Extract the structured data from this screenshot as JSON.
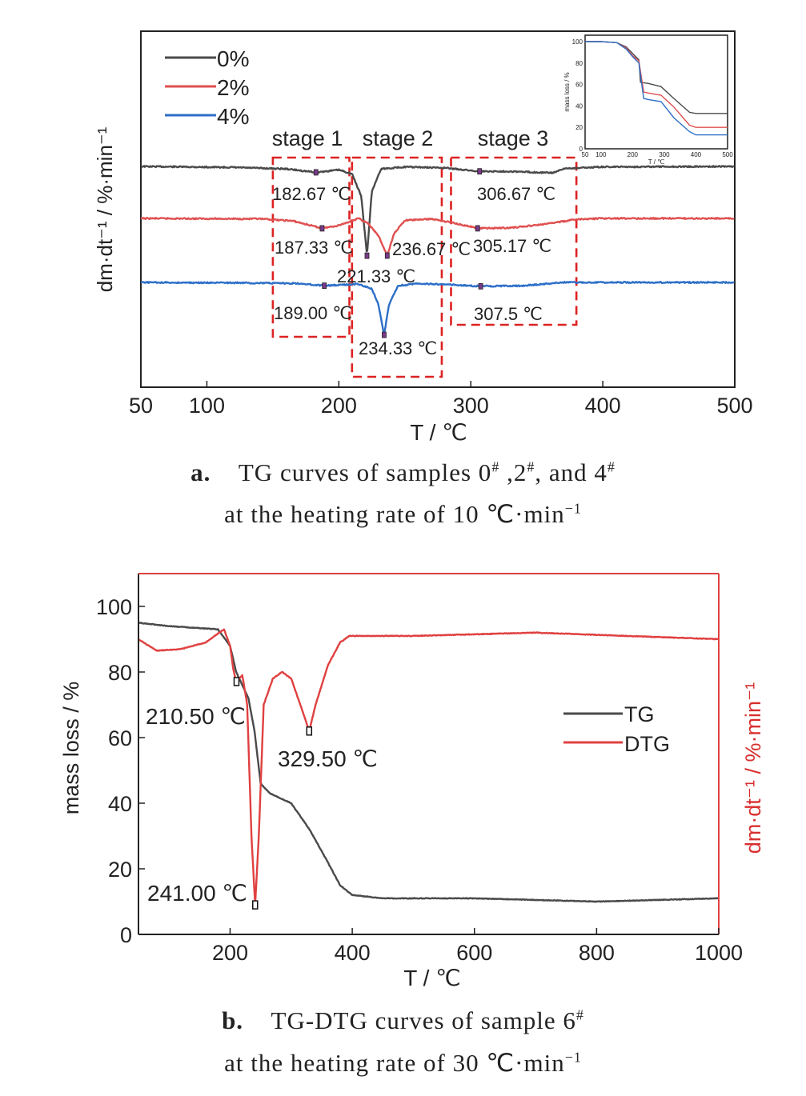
{
  "chart_data": [
    {
      "type": "line",
      "xlabel": "T / ℃",
      "ylabel": "dm·dt⁻¹ / %·min⁻¹",
      "xlim": [
        50,
        500
      ],
      "xticks": [
        "50",
        "100",
        "200",
        "300",
        "400",
        "500"
      ],
      "legend_position": "top-left",
      "series": [
        {
          "name": "0%",
          "color": "#4a4a4a",
          "points": [
            [
              50,
              0.0
            ],
            [
              120,
              0.2
            ],
            [
              160,
              0.5
            ],
            [
              182.67,
              1.2
            ],
            [
              200,
              0.7
            ],
            [
              210,
              1.5
            ],
            [
              217,
              6
            ],
            [
              221.33,
              18.0
            ],
            [
              225,
              5
            ],
            [
              232,
              0.5
            ],
            [
              250,
              0.1
            ],
            [
              280,
              0.3
            ],
            [
              306.67,
              1.0
            ],
            [
              330,
              1.0
            ],
            [
              350,
              1.2
            ],
            [
              362,
              1.3
            ],
            [
              372,
              0.4
            ],
            [
              400,
              0.1
            ],
            [
              500,
              0.0
            ]
          ]
        },
        {
          "name": "2%",
          "color": "#e05050",
          "points": [
            [
              50,
              0.0
            ],
            [
              140,
              0.1
            ],
            [
              165,
              0.5
            ],
            [
              187.33,
              2.0
            ],
            [
              200,
              1.4
            ],
            [
              215,
              0.0
            ],
            [
              222,
              1.0
            ],
            [
              230,
              3.5
            ],
            [
              236.67,
              7.5
            ],
            [
              242,
              3
            ],
            [
              250,
              0.4
            ],
            [
              270,
              0.1
            ],
            [
              285,
              0.8
            ],
            [
              305.17,
              2.0
            ],
            [
              330,
              1.9
            ],
            [
              355,
              1.2
            ],
            [
              380,
              0.2
            ],
            [
              400,
              0.0
            ],
            [
              500,
              0.0
            ]
          ]
        },
        {
          "name": "4%",
          "color": "#2d6fc8",
          "points": [
            [
              50,
              0.0
            ],
            [
              140,
              0.1
            ],
            [
              170,
              0.2
            ],
            [
              189.0,
              0.6
            ],
            [
              205,
              0.4
            ],
            [
              215,
              0.3
            ],
            [
              225,
              1.2
            ],
            [
              230,
              4
            ],
            [
              234.33,
              9.5
            ],
            [
              238,
              4
            ],
            [
              245,
              0.6
            ],
            [
              260,
              0.2
            ],
            [
              285,
              0.4
            ],
            [
              307.5,
              0.7
            ],
            [
              340,
              0.6
            ],
            [
              370,
              0.0
            ],
            [
              400,
              0.0
            ],
            [
              500,
              0.0
            ]
          ]
        }
      ],
      "annotations": {
        "stages": [
          "stage 1",
          "stage 2",
          "stage 3"
        ],
        "peaks": [
          {
            "series": "0%",
            "x": 182.67,
            "label": "182.67 ℃"
          },
          {
            "series": "0%",
            "x": 221.33,
            "label": "221.33 ℃"
          },
          {
            "series": "0%",
            "x": 306.67,
            "label": "306.67 ℃"
          },
          {
            "series": "2%",
            "x": 187.33,
            "label": "187.33 ℃"
          },
          {
            "series": "2%",
            "x": 236.67,
            "label": "236.67 ℃"
          },
          {
            "series": "2%",
            "x": 305.17,
            "label": "305.17 ℃"
          },
          {
            "series": "4%",
            "x": 189.0,
            "label": "189.00 ℃"
          },
          {
            "series": "4%",
            "x": 234.33,
            "label": "234.33 ℃"
          },
          {
            "series": "4%",
            "x": 307.5,
            "label": "307.5 ℃"
          }
        ]
      },
      "inset": {
        "type": "line",
        "xlabel": "T / ℃",
        "ylabel": "mass loss / %",
        "xlim": [
          50,
          500
        ],
        "ylim": [
          0,
          100
        ],
        "xticks": [
          "50",
          "100",
          "200",
          "300",
          "400",
          "500"
        ],
        "yticks": [
          "0",
          "20",
          "40",
          "60",
          "80",
          "100"
        ],
        "series": [
          {
            "name": "0%",
            "color": "#4a4a4a",
            "points": [
              [
                50,
                100
              ],
              [
                100,
                100
              ],
              [
                150,
                99
              ],
              [
                180,
                95
              ],
              [
                200,
                89
              ],
              [
                220,
                83
              ],
              [
                225,
                62
              ],
              [
                250,
                61
              ],
              [
                290,
                58
              ],
              [
                330,
                47
              ],
              [
                380,
                34
              ],
              [
                400,
                33
              ],
              [
                450,
                33
              ],
              [
                500,
                33
              ]
            ]
          },
          {
            "name": "2%",
            "color": "#e05050",
            "points": [
              [
                50,
                100
              ],
              [
                100,
                100
              ],
              [
                150,
                99
              ],
              [
                180,
                94
              ],
              [
                200,
                87
              ],
              [
                220,
                82
              ],
              [
                235,
                53
              ],
              [
                250,
                52
              ],
              [
                290,
                50
              ],
              [
                330,
                39
              ],
              [
                380,
                22
              ],
              [
                400,
                20
              ],
              [
                450,
                20
              ],
              [
                500,
                20
              ]
            ]
          },
          {
            "name": "4%",
            "color": "#2d6fc8",
            "points": [
              [
                50,
                100
              ],
              [
                100,
                100
              ],
              [
                150,
                99
              ],
              [
                180,
                93
              ],
              [
                200,
                86
              ],
              [
                220,
                80
              ],
              [
                235,
                47
              ],
              [
                250,
                46
              ],
              [
                290,
                44
              ],
              [
                330,
                29
              ],
              [
                380,
                16
              ],
              [
                400,
                13
              ],
              [
                450,
                13
              ],
              [
                500,
                13
              ]
            ]
          }
        ]
      }
    },
    {
      "type": "line",
      "xlabel": "T / ℃",
      "ylabel": "mass loss / %",
      "y2label": "dm·dt⁻¹ / %·min⁻¹",
      "xlim": [
        50,
        1000
      ],
      "ylim": [
        0,
        110
      ],
      "xticks": [
        "200",
        "400",
        "600",
        "800",
        "1000"
      ],
      "yticks": [
        "0",
        "20",
        "40",
        "60",
        "80",
        "100"
      ],
      "legend_position": "center-right",
      "series": [
        {
          "name": "TG",
          "color": "#4a4a4a",
          "points": [
            [
              50,
              95
            ],
            [
              100,
              94
            ],
            [
              180,
              93
            ],
            [
              200,
              88
            ],
            [
              210,
              80
            ],
            [
              230,
              72
            ],
            [
              240,
              62
            ],
            [
              250,
              46
            ],
            [
              265,
              43
            ],
            [
              300,
              40
            ],
            [
              330,
              32
            ],
            [
              360,
              22
            ],
            [
              380,
              15
            ],
            [
              400,
              12
            ],
            [
              450,
              11
            ],
            [
              600,
              11
            ],
            [
              700,
              10.5
            ],
            [
              800,
              10
            ],
            [
              900,
              10.5
            ],
            [
              1000,
              11
            ]
          ]
        },
        {
          "name": "DTG",
          "color": "#e04040",
          "points": [
            [
              50,
              90
            ],
            [
              80,
              86.5
            ],
            [
              120,
              87
            ],
            [
              160,
              89
            ],
            [
              190,
              93
            ],
            [
              200,
              88
            ],
            [
              205,
              81
            ],
            [
              210,
              77
            ],
            [
              220,
              79
            ],
            [
              228,
              70
            ],
            [
              235,
              30
            ],
            [
              241,
              9
            ],
            [
              247,
              30
            ],
            [
              255,
              70
            ],
            [
              270,
              78
            ],
            [
              285,
              80
            ],
            [
              300,
              78
            ],
            [
              315,
              70
            ],
            [
              329.5,
              62
            ],
            [
              340,
              70
            ],
            [
              360,
              82
            ],
            [
              380,
              89
            ],
            [
              395,
              91
            ],
            [
              500,
              91
            ],
            [
              700,
              92
            ],
            [
              850,
              91
            ],
            [
              1000,
              90
            ]
          ]
        }
      ],
      "annotations": [
        {
          "series": "DTG",
          "x": 210.5,
          "label": "210.50 ℃"
        },
        {
          "series": "DTG",
          "x": 241.0,
          "label": "241.00 ℃"
        },
        {
          "series": "DTG",
          "x": 329.5,
          "label": "329.50 ℃"
        }
      ]
    }
  ],
  "captions": {
    "a": {
      "label": "a.",
      "line1": "TG curves of samples 0",
      "sep1": " ,2",
      "sep2": ", and 4",
      "line2": "at the heating rate of 10 ℃·min",
      "sup": "−1",
      "hash": "#"
    },
    "b": {
      "label": "b.",
      "line1": "TG-DTG curves of sample 6",
      "line2": "at the heating rate of 30 ℃·min",
      "sup": "−1",
      "hash": "#"
    }
  }
}
